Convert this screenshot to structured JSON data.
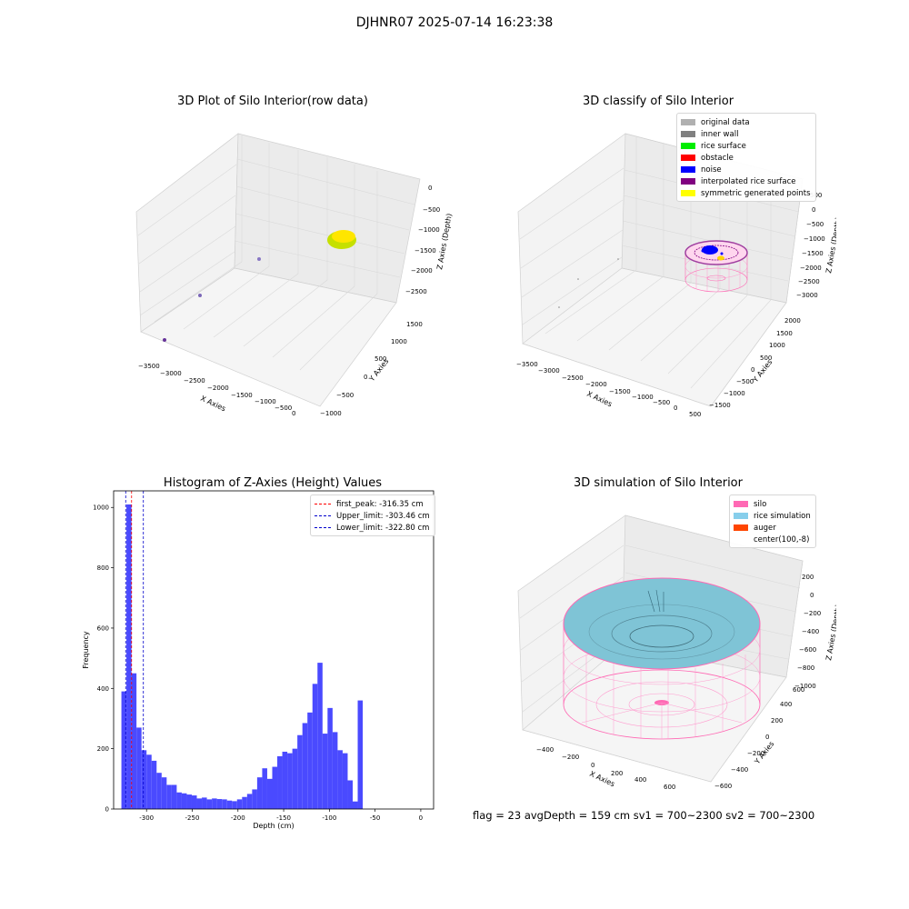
{
  "page": {
    "suptitle": "DJHNR07 2025-07-14 16:23:38",
    "status_line": "flag = 23   avgDepth = 159 cm  sv1 = 700~2300  sv2 = 700~2300"
  },
  "colors": {
    "original": "#b0b0b0",
    "inner_wall": "#808080",
    "rice_surface": "#00ee00",
    "obstacle": "#ff0000",
    "noise": "#0000ff",
    "interpolated": "#800080",
    "symmetric": "#ffff00",
    "silo": "#ff69b4",
    "rice_sim": "#87ceeb",
    "auger": "#ff4500",
    "hist_bar": "#4a4aff",
    "peak": "#ff0000",
    "limit": "#0000cc"
  },
  "chart_data": [
    {
      "type": "scatter",
      "title": "3D Plot of Silo Interior(row data)",
      "xlabel": "X Axies",
      "ylabel": "Y Axies",
      "zlabel": "Z Axies (Depth)",
      "xticks": [
        "−3500",
        "−3000",
        "−2500",
        "−2000",
        "−1500",
        "−1000",
        "−500",
        "0"
      ],
      "yticks": [
        "−1000",
        "−500",
        "0",
        "500",
        "1000",
        "1500"
      ],
      "zticks": [
        "0",
        "−500",
        "−1000",
        "−1500",
        "−2000",
        "−2500"
      ]
    },
    {
      "type": "scatter",
      "title": "3D classify of Silo Interior",
      "xlabel": "X Axies",
      "ylabel": "Y Axies",
      "zlabel": "Z Axies (Depth)",
      "xticks": [
        "−3500",
        "−3000",
        "−2500",
        "−2000",
        "−1500",
        "−1000",
        "−500",
        "0",
        "500"
      ],
      "yticks": [
        "−1500",
        "−1000",
        "−500",
        "0",
        "500",
        "1000",
        "1500",
        "2000"
      ],
      "zticks": [
        "500",
        "0",
        "−500",
        "−1000",
        "−1500",
        "−2000",
        "−2500",
        "−3000"
      ],
      "legend": [
        "original data",
        "inner wall",
        "rice surface",
        "obstacle",
        "noise",
        "interpolated rice surface",
        "symmetric generated points"
      ]
    },
    {
      "type": "bar",
      "title": "Histogram of Z-Axies (Height) Values",
      "xlabel": "Depth (cm)",
      "ylabel": "Frequency",
      "xlim": [
        -336,
        14
      ],
      "ylim": [
        0,
        1055
      ],
      "xticks": [
        -300,
        -250,
        -200,
        -150,
        -100,
        -50,
        0
      ],
      "yticks": [
        0,
        200,
        400,
        600,
        800,
        1000
      ],
      "bin_start": -327.5,
      "bin_width": 5.5,
      "values": [
        390,
        1010,
        450,
        270,
        195,
        180,
        160,
        120,
        105,
        80,
        80,
        55,
        52,
        48,
        45,
        35,
        38,
        32,
        35,
        33,
        32,
        28,
        26,
        32,
        40,
        50,
        65,
        105,
        135,
        100,
        140,
        175,
        190,
        185,
        200,
        245,
        285,
        320,
        415,
        485,
        250,
        335,
        255,
        195,
        185,
        95,
        25,
        360
      ],
      "vlines": [
        {
          "label": "first_peak: -316.35 cm",
          "x": -316.35,
          "color": "#ff0000"
        },
        {
          "label": "Upper_limit: -303.46 cm",
          "x": -303.46,
          "color": "#0000cc"
        },
        {
          "label": "Lower_limit: -322.80 cm",
          "x": -322.8,
          "color": "#0000cc"
        }
      ]
    },
    {
      "type": "area",
      "title": "3D simulation of Silo Interior",
      "xlabel": "X Axies",
      "ylabel": "Y Axies",
      "zlabel": "Z Axies (Depth)",
      "xticks": [
        "−400",
        "−200",
        "0",
        "200",
        "400",
        "600"
      ],
      "yticks": [
        "−600",
        "−400",
        "−200",
        "0",
        "200",
        "400",
        "600"
      ],
      "zticks": [
        "200",
        "0",
        "−200",
        "−400",
        "−600",
        "−800",
        "−1000"
      ],
      "legend": [
        "silo",
        "rice simulation",
        "auger",
        "center(100,-8)"
      ]
    }
  ]
}
